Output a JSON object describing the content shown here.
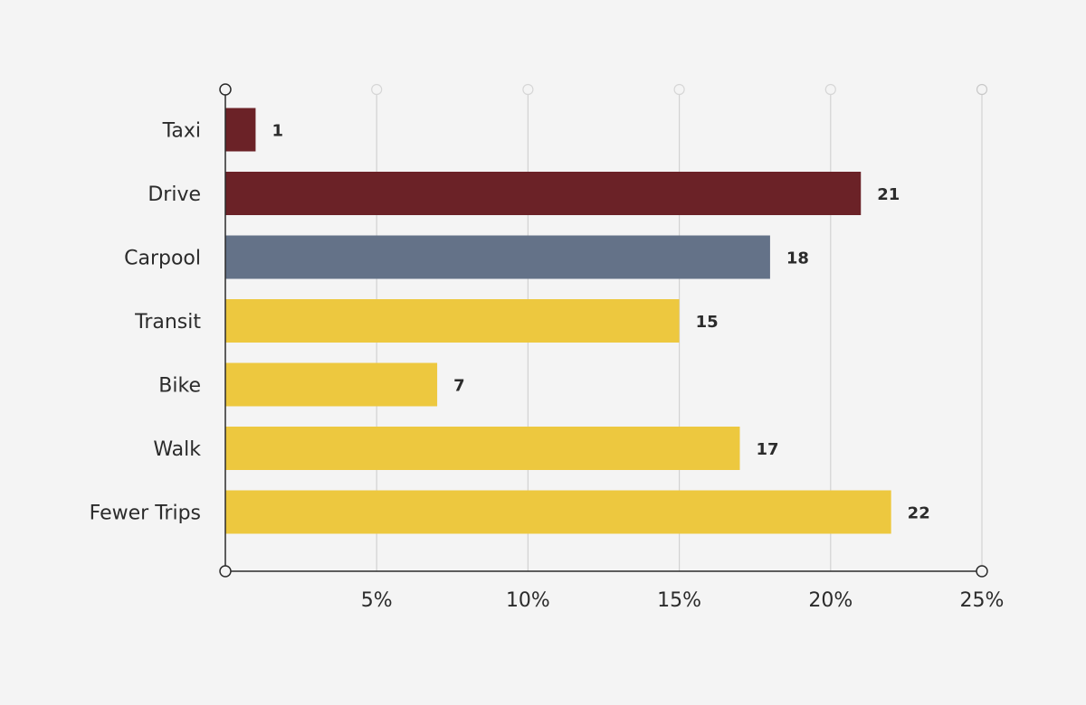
{
  "chart_data": {
    "type": "bar",
    "orientation": "horizontal",
    "title": "",
    "xlabel": "",
    "ylabel": "",
    "xlim": [
      0,
      25
    ],
    "x_ticks": [
      5,
      10,
      15,
      20,
      25
    ],
    "tick_suffix": "%",
    "grid": true,
    "categories": [
      "Taxi",
      "Drive",
      "Carpool",
      "Transit",
      "Bike",
      "Walk",
      "Fewer Trips"
    ],
    "values": [
      1,
      21,
      18,
      15,
      7,
      17,
      22
    ],
    "colors": [
      "#6b2227",
      "#6b2227",
      "#647288",
      "#edc83f",
      "#edc83f",
      "#edc83f",
      "#edc83f"
    ]
  },
  "style": {
    "background": "#f4f4f4",
    "axis_color": "#2b2b2b",
    "grid_color": "#d2d2d2"
  }
}
